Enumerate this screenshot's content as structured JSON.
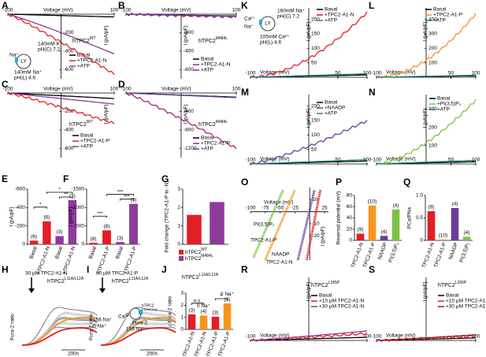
{
  "panels": [
    {
      "label": "A",
      "xlabel": "Voltage (mV)",
      "xlim": [
        -100,
        100
      ],
      "xticks": [
        -100,
        100
      ],
      "ylabel": "I (pA/pF)",
      "ylim": [
        0,
        -700
      ],
      "yticks": [
        -200,
        -400,
        -600
      ],
      "title": "hTPC2",
      "title_sup": "WT",
      "title_color": "#e31e24",
      "legend": [
        {
          "name": "Basal",
          "color": "#000000"
        },
        {
          "name": "+TPC2-A1-N",
          "color": "#e31e24"
        },
        {
          "name": "+ATP",
          "color": "#8e3a9c"
        }
      ],
      "diagram": [
        "Na⁺",
        "LY",
        "140mM K⁺",
        "pH(C) 7.2",
        "140mM Na⁺",
        "pH(L) 4.6"
      ]
    },
    {
      "label": "B",
      "xlabel": "Voltage (mV)",
      "xlim": [
        -100,
        100
      ],
      "xticks": [
        -100,
        100
      ],
      "ylabel": "I (pA/pF)",
      "ylim": [
        0,
        -700
      ],
      "yticks": [
        -200,
        -400,
        -600
      ],
      "title": "hTPC2",
      "title_sup": "M484L",
      "title_color": "#8e3a9c",
      "legend": [
        {
          "name": "Basal",
          "color": "#000000"
        },
        {
          "name": "+TPC2-A1-N",
          "color": "#a3237a"
        },
        {
          "name": "+ATP",
          "color": "#6a3d9a"
        }
      ]
    },
    {
      "label": "C",
      "xlabel": "Voltage (mV)",
      "xlim": [
        -100,
        100
      ],
      "xticks": [
        -100,
        100
      ],
      "ylabel": "I (pA/pF)",
      "ylim": [
        0,
        -700
      ],
      "yticks": [
        -200,
        -400,
        -600
      ],
      "title": "hTPC2",
      "title_sup": "WT",
      "title_color": "#e31e24",
      "legend": [
        {
          "name": "Basal",
          "color": "#000000"
        },
        {
          "name": "+TPC2-A1-P",
          "color": "#e31e24"
        },
        {
          "name": "+ATP",
          "color": "#8e3a9c"
        }
      ]
    },
    {
      "label": "D",
      "xlabel": "Voltage (mV)",
      "xlim": [
        -100,
        100
      ],
      "xticks": [
        -100,
        100
      ],
      "ylabel": "I (pA/pF)",
      "ylim": [
        0,
        -1400
      ],
      "yticks": [
        -400,
        -800,
        -1200
      ],
      "title": "hTPC2",
      "title_sup": "M484L",
      "title_color": "#8e3a9c",
      "legend": [
        {
          "name": "Basal",
          "color": "#000000"
        },
        {
          "name": "+TPC2-A1-P",
          "color": "#a3237a"
        },
        {
          "name": "+ATP",
          "color": "#6a3d9a"
        }
      ]
    },
    {
      "label": "E",
      "ylabel": "I (pA/pF)",
      "ylim": [
        0,
        -600
      ],
      "yticks": [
        0,
        -200,
        -400,
        -600
      ],
      "categories": [
        "Basal",
        "+TPC2-A1-N",
        "Basal",
        "+TPC2-A1-N"
      ],
      "values": [
        -40,
        -250,
        -90,
        -480
      ],
      "colors": [
        "#e31e24",
        "#e31e24",
        "#8e3a9c",
        "#8e3a9c"
      ],
      "n_labels": [
        "(6)",
        "(6)",
        "(3)",
        "(3)"
      ],
      "significance": [
        "*",
        "*",
        "**"
      ]
    },
    {
      "label": "F",
      "ylabel": "I (pA/pF)",
      "ylim": [
        0,
        -1500
      ],
      "yticks": [
        0,
        -500,
        -1000,
        -1500
      ],
      "categories": [
        "Basal",
        "+TPC2-A1-P",
        "Basal",
        "+TPC2-A1-P"
      ],
      "values": [
        -40,
        -380,
        -60,
        -1100
      ],
      "colors": [
        "#e31e24",
        "#e31e24",
        "#8e3a9c",
        "#8e3a9c"
      ],
      "n_labels": [
        "(8)",
        "(8)",
        "(3)",
        "(3)"
      ],
      "significance": [
        "***",
        "***",
        "***"
      ]
    },
    {
      "label": "G",
      "ylabel": "Fold change (TPC2-A1-P to -N)",
      "ylim": [
        0,
        3
      ],
      "yticks": [
        0,
        1,
        2,
        3
      ],
      "values": [
        1.6,
        2.3
      ],
      "colors": [
        "#e31e24",
        "#8e3a9c"
      ],
      "legend": [
        {
          "name": "hTPC2",
          "sup": "WT",
          "color": "#e31e24"
        },
        {
          "name": "hTPC2",
          "sup": "M484L",
          "color": "#8e3a9c"
        }
      ]
    },
    {
      "label": "H",
      "agonist": "30 µM TPC2-A1-N",
      "title": "hTPC2",
      "title_sup": "L11A/L12A",
      "ylabel": "Fura-2 ratio",
      "trace_labels": [
        "156 Na⁺",
        "0 Na⁺"
      ],
      "scale": "200s"
    },
    {
      "label": "I",
      "agonist": "60 µM TPC2-A1-P",
      "title": "hTPC2",
      "title_sup": "L11A/L12A",
      "ylabel": "Fura-2 ratio",
      "trace_labels": [
        "0 Na⁺",
        "156 Na⁺"
      ],
      "scale": "200s",
      "diagram": [
        "Ca²⁺",
        "hTPC2",
        "L11A/L12A",
        "Fura-2"
      ]
    },
    {
      "label": "J",
      "title": "hTPC2",
      "title_sup": "L11A/L12A",
      "ylabel": "ΔFura-2 ratio",
      "ylim": [
        0,
        3
      ],
      "yticks": [
        0,
        1,
        2,
        3
      ],
      "categories": [
        "+TPC2-A1-N",
        "+TPC2-A1-N",
        "+TPC2-A1-P",
        "+TPC2-A1-P"
      ],
      "values": [
        1.25,
        1.15,
        1.05,
        2.15
      ],
      "colors": [
        "#e31e24",
        "#f7941d",
        "#e31e24",
        "#f7941d"
      ],
      "n_labels": [
        "(3)",
        "(4)",
        "(3)",
        "(3)"
      ],
      "bar_notes": [
        null,
        "0 Na⁺",
        null,
        "0 Na⁺"
      ],
      "significance": [
        "n.s.",
        "*"
      ]
    },
    {
      "label": "K",
      "xlabel": "Voltage (mV)",
      "xlim": [
        -100,
        100
      ],
      "xticks": [
        -100,
        50,
        100
      ],
      "ylabel": "I (pA/pF)",
      "ylim": [
        0,
        240
      ],
      "yticks": [
        50,
        100,
        150,
        200
      ],
      "legend": [
        {
          "name": "Basal",
          "color": "#000000"
        },
        {
          "name": "+TPC2-A1-N",
          "color": "#e31e24"
        },
        {
          "name": "+ATP",
          "color": "#1f8a86"
        }
      ],
      "diagram": [
        "Ca²⁺",
        "Na⁺",
        "LY",
        "160mM Na⁺",
        "pH(C) 7.2",
        "105mM Ca²⁺",
        "pH(L) 4.6"
      ]
    },
    {
      "label": "L",
      "xlabel": "Voltage (mV)",
      "xlim": [
        -100,
        100
      ],
      "xticks": [
        -100,
        50,
        100
      ],
      "ylabel": "I (pA/pF)",
      "ylim": [
        0,
        480
      ],
      "yticks": [
        100,
        200,
        300,
        400
      ],
      "legend": [
        {
          "name": "Basal",
          "color": "#000000"
        },
        {
          "name": "+TPC2-A1-P",
          "color": "#f7941d"
        },
        {
          "name": "+ATP",
          "color": "#1f8a86"
        }
      ]
    },
    {
      "label": "M",
      "xlabel": "Voltage (mV)",
      "xlim": [
        -100,
        100
      ],
      "xticks": [
        -100,
        50,
        100
      ],
      "ylabel": "I (pA/pF)",
      "ylim": [
        0,
        240
      ],
      "yticks": [
        50,
        100,
        150,
        200
      ],
      "legend": [
        {
          "name": "Basal",
          "color": "#000000"
        },
        {
          "name": "+NAADP",
          "color": "#6a3d9a"
        },
        {
          "name": "+ATP",
          "color": "#1f8a86"
        }
      ]
    },
    {
      "label": "N",
      "xlabel": "Voltage (mV)",
      "xlim": [
        -100,
        100
      ],
      "xticks": [
        -100,
        50,
        100
      ],
      "ylabel": "I (pA/pF)",
      "ylim": [
        0,
        380
      ],
      "yticks": [
        100,
        200,
        300
      ],
      "legend": [
        {
          "name": "Basal",
          "color": "#000000"
        },
        {
          "name": "+PI(3,5)P₂",
          "color": "#7cc242"
        },
        {
          "name": "+ATP",
          "color": "#1f8a86"
        }
      ]
    },
    {
      "label": "O",
      "xlabel": "Voltage (mV)",
      "xlim": [
        -100,
        25
      ],
      "xticks": [
        -100,
        -75,
        -50,
        -25,
        25
      ],
      "ylabel": "I (pA/pF)",
      "ylim": [
        20,
        -40
      ],
      "yticks": [
        10,
        -10,
        -20
      ],
      "trace_labels": [
        {
          "name": "PI(3,5)P₂",
          "color": "#7cc242"
        },
        {
          "name": "TPC2-A1-P",
          "color": "#f7941d"
        },
        {
          "name": "NAADP",
          "color": "#6a3d9a"
        },
        {
          "name": "TPC2-A1-N",
          "color": "#e31e24"
        }
      ]
    },
    {
      "label": "P",
      "ylabel": "Reversal potential (mV)",
      "ylim": [
        0,
        80
      ],
      "yticks": [
        0,
        20,
        40,
        60,
        80
      ],
      "categories": [
        "TPC2-A1-N",
        "TPC2-A1-P",
        "NAADP",
        "PI(3,5)P₂"
      ],
      "values": [
        12,
        62,
        8,
        55
      ],
      "colors": [
        "#e31e24",
        "#f7941d",
        "#6a3d9a",
        "#7cc242"
      ],
      "n_labels": [
        "(9)",
        "(10)",
        "(4)",
        "(4)"
      ]
    },
    {
      "label": "Q",
      "ylabel": "PCa/PNa",
      "ylim": [
        0,
        1
      ],
      "yticks": [
        0,
        0.5,
        {
          "value": 1,
          "label": "1.0"
        }
      ],
      "categories": [
        "TPC2-A1-N",
        "TPC2-A1-P",
        "NAADP",
        "PI(3,5)P₂"
      ],
      "values": [
        0.65,
        0.02,
        0.72,
        0.08
      ],
      "colors": [
        "#e31e24",
        "#f7941d",
        "#6a3d9a",
        "#7cc242"
      ],
      "n_labels": [
        "(9)",
        "(10)",
        "(4)",
        "(4)"
      ]
    },
    {
      "label": "R",
      "xlabel": "Voltage (mV)",
      "xlim": [
        -100,
        100
      ],
      "xticks": [
        -100,
        100
      ],
      "ylabel": "I (pA/pF)",
      "ylim": [
        0,
        200
      ],
      "yticks": [],
      "title": "hTPC2",
      "title_sup": "L265P",
      "title_color": "#000000",
      "legend": [
        {
          "name": "Basal",
          "color": "#000000"
        },
        {
          "name": "+10 µM TPC2-A1-N",
          "color": "#e31e24"
        },
        {
          "name": "+30 µM TPC2-A1-N",
          "color": "#8e3a9c"
        }
      ]
    },
    {
      "label": "S",
      "xlabel": "Voltage (mV)",
      "xlim": [
        -100,
        100
      ],
      "xticks": [
        -100,
        100
      ],
      "ylabel": "I (pA/pF)",
      "ylim": [
        0,
        200
      ],
      "yticks": [],
      "title": "hTPC2",
      "title_sup": "L265P",
      "title_color": "#000000",
      "legend": [
        {
          "name": "Basal",
          "color": "#000000"
        },
        {
          "name": "+10 µM TPC2-A1-P",
          "color": "#e31e24"
        },
        {
          "name": "+30 µM TPC2-A1-P",
          "color": "#8b1a1a"
        }
      ]
    }
  ]
}
